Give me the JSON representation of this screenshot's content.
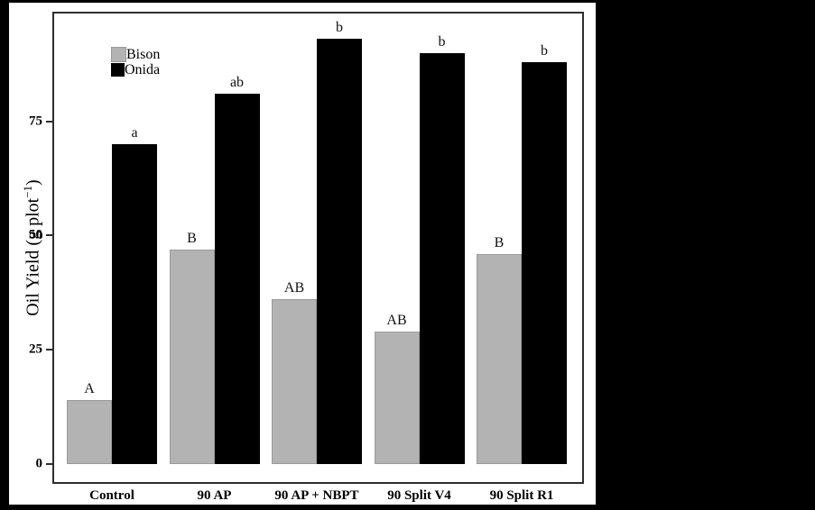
{
  "chart_data": {
    "type": "bar",
    "title": "",
    "xlabel": "",
    "ylabel": "Oil Yield (g plot−1)",
    "ylabel_parts": {
      "pre": "Oil Yield (g plot",
      "sup": "−1",
      "post": ")"
    },
    "categories": [
      "Control",
      "90 AP",
      "90 AP + NBPT",
      "90 Split V4",
      "90 Split R1"
    ],
    "series": [
      {
        "name": "Bison",
        "color": "#b3b3b3",
        "values": [
          14,
          47,
          36,
          29,
          46
        ],
        "letters": [
          "A",
          "B",
          "AB",
          "AB",
          "B"
        ]
      },
      {
        "name": "Onida",
        "color": "#000000",
        "values": [
          70,
          81,
          93,
          90,
          88
        ],
        "letters": [
          "a",
          "ab",
          "b",
          "b",
          "b"
        ]
      }
    ],
    "yticks": [
      0,
      25,
      50,
      75
    ],
    "ylim": [
      0,
      99
    ],
    "grid": false,
    "legend_position": "top-left-inside",
    "background_color": "#000000",
    "panel_color": "#ffffff"
  }
}
